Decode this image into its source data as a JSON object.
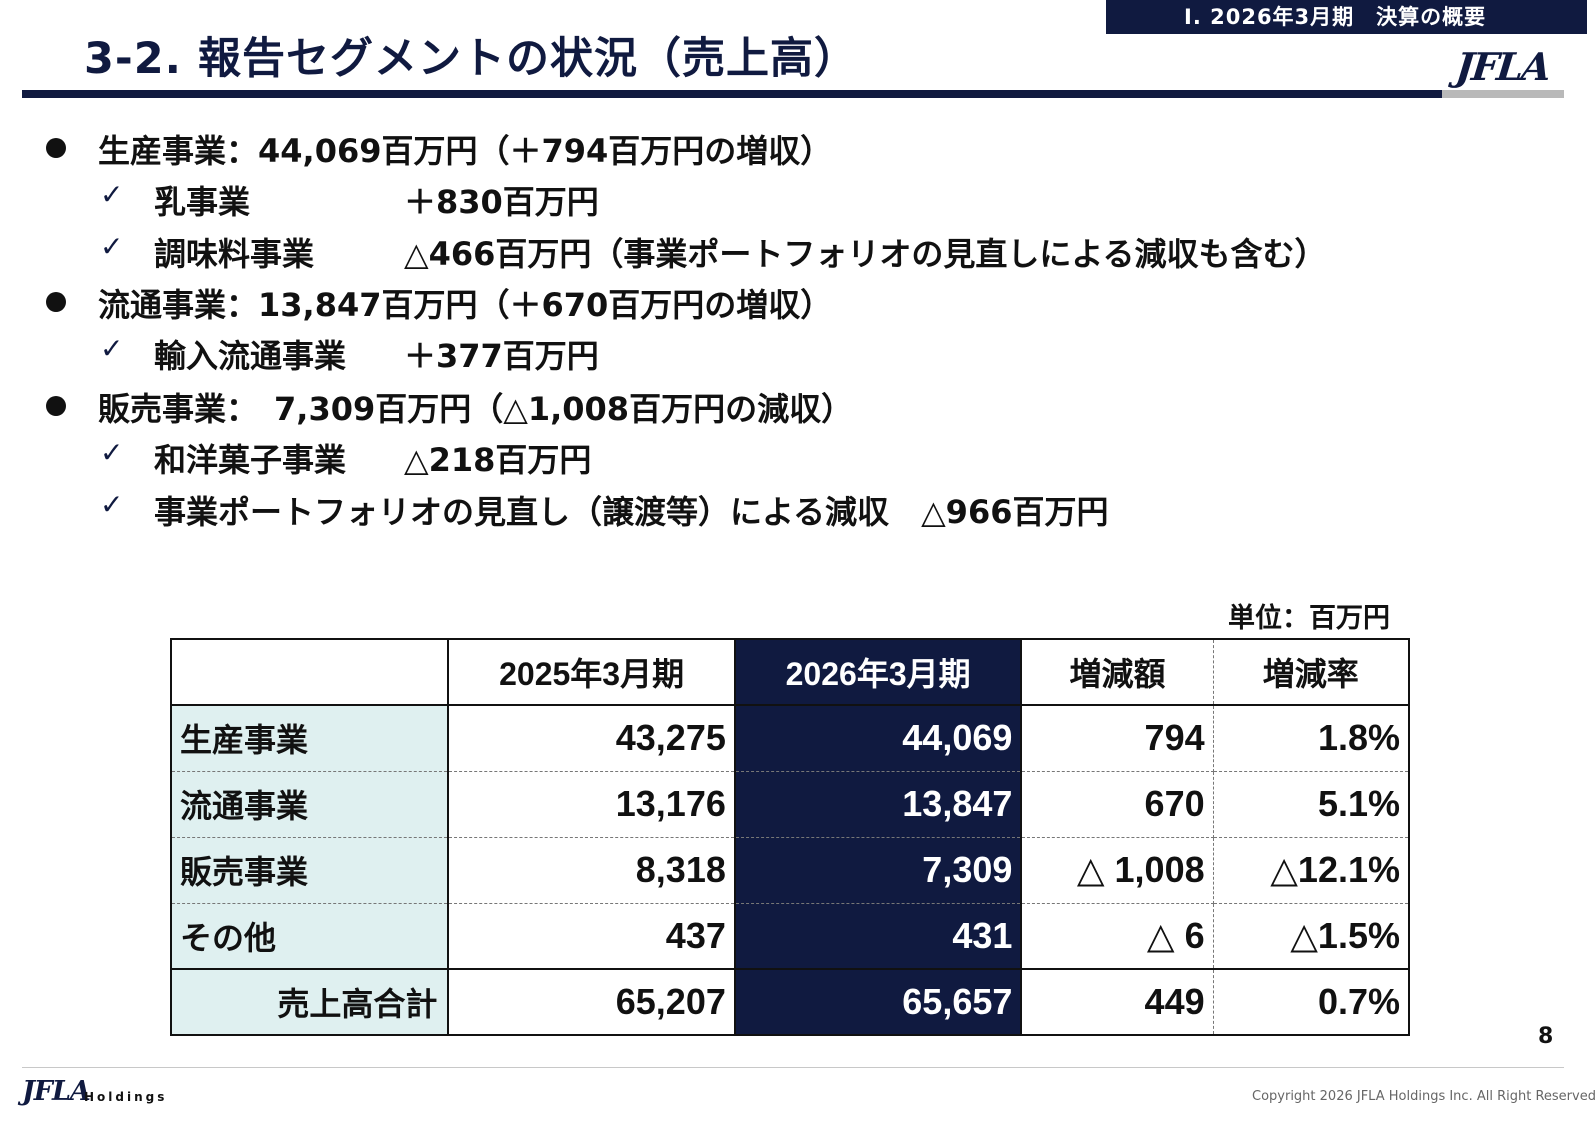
{
  "header": {
    "section_tag": "Ⅰ. 2026年3月期　決算の概要",
    "title": "3-2. 報告セグメントの状況（売上高）",
    "logo_text": "JFLA"
  },
  "bullets": [
    {
      "label": "生産事業",
      "text": "：44,069百万円（＋794百万円の増収）"
    },
    {
      "label": "乳事業",
      "text": "＋830百万円"
    },
    {
      "label": "調味料事業",
      "text": "△466百万円（事業ポートフォリオの見直しによる減収も含む）"
    },
    {
      "label": "流通事業",
      "text": "：13,847百万円（＋670百万円の増収）"
    },
    {
      "label": "輸入流通事業",
      "text": "＋377百万円"
    },
    {
      "label": "販売事業",
      "text": "：　7,309百万円（△1,008百万円の減収）"
    },
    {
      "label": "和洋菓子事業",
      "text": "△218百万円"
    },
    {
      "label": "事業ポートフォリオの見直し（譲渡等）による減収",
      "text": "△966百万円"
    }
  ],
  "unit": "単位：百万円",
  "table": {
    "headers": [
      "",
      "2025年3月期",
      "2026年3月期",
      "増減額",
      "増減率"
    ],
    "rows": [
      [
        "生産事業",
        "43,275",
        "44,069",
        "794",
        "1.8%"
      ],
      [
        "流通事業",
        "13,176",
        "13,847",
        "670",
        "5.1%"
      ],
      [
        "販売事業",
        "8,318",
        "7,309",
        "△ 1,008",
        "△12.1%"
      ],
      [
        "その他",
        "437",
        "431",
        "△ 6",
        "△1.5%"
      ],
      [
        "売上高合計",
        "65,207",
        "65,657",
        "449",
        "0.7%"
      ]
    ]
  },
  "footer": {
    "page_number": "8",
    "logo_text": "JFLA",
    "holdings": "Holdings",
    "copyright": "Copyright 2026 JFLA Holdings Inc.   All Right Reserved"
  },
  "colors": {
    "navy": "#101a40",
    "header_cell": "#dff0f0",
    "rule_gray": "#b9b9b9"
  }
}
